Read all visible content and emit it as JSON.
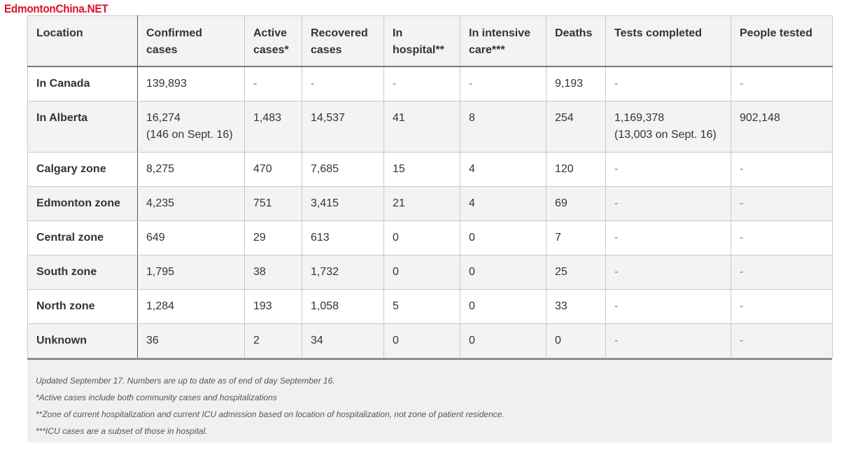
{
  "watermark": "EdmontonChina.NET",
  "table": {
    "headers": [
      "Location",
      "Confirmed cases",
      "Active cases*",
      "Recovered cases",
      "In hospital**",
      "In intensive care***",
      "Deaths",
      "Tests completed",
      "People tested"
    ],
    "rows": [
      {
        "location": "In Canada",
        "confirmed": "139,893",
        "confirmed_note": "",
        "active": "-",
        "recovered": "-",
        "hospital": "-",
        "icu": "-",
        "deaths": "9,193",
        "tests": "-",
        "tests_note": "",
        "people": "-"
      },
      {
        "location": "In Alberta",
        "confirmed": "16,274",
        "confirmed_note": "(146 on Sept. 16)",
        "active": "1,483",
        "recovered": "14,537",
        "hospital": "41",
        "icu": "8",
        "deaths": "254",
        "tests": "1,169,378",
        "tests_note": "(13,003 on Sept. 16)",
        "people": "902,148"
      },
      {
        "location": "Calgary zone",
        "confirmed": "8,275",
        "confirmed_note": "",
        "active": "470",
        "recovered": "7,685",
        "hospital": "15",
        "icu": "4",
        "deaths": "120",
        "tests": "-",
        "tests_note": "",
        "people": "-"
      },
      {
        "location": "Edmonton zone",
        "confirmed": "4,235",
        "confirmed_note": "",
        "active": "751",
        "recovered": "3,415",
        "hospital": "21",
        "icu": "4",
        "deaths": "69",
        "tests": "-",
        "tests_note": "",
        "people": "-"
      },
      {
        "location": "Central zone",
        "confirmed": "649",
        "confirmed_note": "",
        "active": "29",
        "recovered": "613",
        "hospital": "0",
        "icu": "0",
        "deaths": "7",
        "tests": "-",
        "tests_note": "",
        "people": "-"
      },
      {
        "location": "South zone",
        "confirmed": "1,795",
        "confirmed_note": "",
        "active": "38",
        "recovered": "1,732",
        "hospital": "0",
        "icu": "0",
        "deaths": "25",
        "tests": "-",
        "tests_note": "",
        "people": "-"
      },
      {
        "location": "North zone",
        "confirmed": "1,284",
        "confirmed_note": "",
        "active": "193",
        "recovered": "1,058",
        "hospital": "5",
        "icu": "0",
        "deaths": "33",
        "tests": "-",
        "tests_note": "",
        "people": "-"
      },
      {
        "location": "Unknown",
        "confirmed": "36",
        "confirmed_note": "",
        "active": "2",
        "recovered": "34",
        "hospital": "0",
        "icu": "0",
        "deaths": "0",
        "tests": "-",
        "tests_note": "",
        "people": "-"
      }
    ]
  },
  "notes": {
    "updated": "Updated September 17. Numbers are up to date as of end of day September 16.",
    "active_note": "*Active cases include both community cases and hospitalizations",
    "zone_note": "**Zone of current hospitalization and current ICU admission based on location of hospitalization, not zone of patient residence.",
    "icu_note": "***ICU cases are a subset of those in hospital."
  }
}
